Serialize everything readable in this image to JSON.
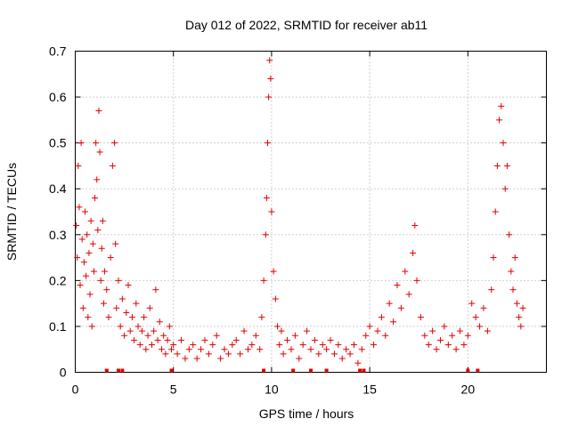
{
  "chart_data": {
    "type": "scatter",
    "title": "Day 012 of 2022, SRMTID for receiver ab11",
    "xlabel": "GPS time / hours",
    "ylabel": "SRMTID / TECUs",
    "xlim": [
      0,
      24
    ],
    "ylim": [
      0,
      0.7
    ],
    "xticks": [
      0,
      5,
      10,
      15,
      20
    ],
    "xtick_labels": [
      "0",
      "5",
      "10",
      "15",
      "20"
    ],
    "yticks": [
      0,
      0.1,
      0.2,
      0.3,
      0.4,
      0.5,
      0.6,
      0.7
    ],
    "ytick_labels": [
      "0",
      "0.1",
      "0.2",
      "0.3",
      "0.4",
      "0.5",
      "0.6",
      "0.7"
    ],
    "grid": true,
    "marker": "plus",
    "color": "#e00000",
    "series": [
      {
        "name": "SRMTID",
        "points": [
          [
            0.05,
            0.32
          ],
          [
            0.1,
            0.25
          ],
          [
            0.15,
            0.45
          ],
          [
            0.2,
            0.36
          ],
          [
            0.25,
            0.19
          ],
          [
            0.3,
            0.5
          ],
          [
            0.35,
            0.29
          ],
          [
            0.4,
            0.14
          ],
          [
            0.45,
            0.24
          ],
          [
            0.5,
            0.35
          ],
          [
            0.55,
            0.21
          ],
          [
            0.6,
            0.3
          ],
          [
            0.65,
            0.12
          ],
          [
            0.7,
            0.26
          ],
          [
            0.75,
            0.17
          ],
          [
            0.8,
            0.33
          ],
          [
            0.85,
            0.1
          ],
          [
            0.9,
            0.28
          ],
          [
            0.95,
            0.22
          ],
          [
            1.0,
            0.38
          ],
          [
            1.05,
            0.5
          ],
          [
            1.1,
            0.42
          ],
          [
            1.15,
            0.31
          ],
          [
            1.2,
            0.57
          ],
          [
            1.25,
            0.48
          ],
          [
            1.3,
            0.2
          ],
          [
            1.35,
            0.27
          ],
          [
            1.4,
            0.33
          ],
          [
            1.45,
            0.15
          ],
          [
            1.5,
            0.22
          ],
          [
            1.6,
            0.18
          ],
          [
            1.7,
            0.12
          ],
          [
            1.8,
            0.25
          ],
          [
            1.9,
            0.45
          ],
          [
            2.0,
            0.5
          ],
          [
            2.05,
            0.28
          ],
          [
            2.1,
            0.14
          ],
          [
            2.2,
            0.2
          ],
          [
            2.3,
            0.1
          ],
          [
            2.4,
            0.16
          ],
          [
            2.5,
            0.08
          ],
          [
            2.6,
            0.13
          ],
          [
            2.7,
            0.19
          ],
          [
            2.8,
            0.09
          ],
          [
            2.9,
            0.12
          ],
          [
            3.0,
            0.07
          ],
          [
            3.1,
            0.15
          ],
          [
            3.2,
            0.1
          ],
          [
            3.3,
            0.06
          ],
          [
            3.4,
            0.09
          ],
          [
            3.5,
            0.12
          ],
          [
            3.6,
            0.05
          ],
          [
            3.7,
            0.08
          ],
          [
            3.8,
            0.14
          ],
          [
            3.9,
            0.06
          ],
          [
            4.0,
            0.09
          ],
          [
            4.1,
            0.18
          ],
          [
            4.2,
            0.07
          ],
          [
            4.3,
            0.11
          ],
          [
            4.4,
            0.05
          ],
          [
            4.5,
            0.08
          ],
          [
            4.6,
            0.04
          ],
          [
            4.7,
            0.07
          ],
          [
            4.8,
            0.1
          ],
          [
            4.9,
            0.05
          ],
          [
            5.0,
            0.06
          ],
          [
            5.2,
            0.04
          ],
          [
            5.4,
            0.07
          ],
          [
            5.6,
            0.03
          ],
          [
            5.8,
            0.05
          ],
          [
            6.0,
            0.06
          ],
          [
            6.2,
            0.03
          ],
          [
            6.4,
            0.05
          ],
          [
            6.6,
            0.07
          ],
          [
            6.8,
            0.04
          ],
          [
            7.0,
            0.06
          ],
          [
            7.2,
            0.08
          ],
          [
            7.4,
            0.03
          ],
          [
            7.6,
            0.05
          ],
          [
            7.8,
            0.04
          ],
          [
            8.0,
            0.06
          ],
          [
            8.2,
            0.07
          ],
          [
            8.4,
            0.04
          ],
          [
            8.6,
            0.09
          ],
          [
            8.8,
            0.05
          ],
          [
            9.0,
            0.06
          ],
          [
            9.2,
            0.08
          ],
          [
            9.4,
            0.05
          ],
          [
            9.5,
            0.12
          ],
          [
            9.6,
            0.2
          ],
          [
            9.7,
            0.3
          ],
          [
            9.75,
            0.38
          ],
          [
            9.8,
            0.5
          ],
          [
            9.85,
            0.6
          ],
          [
            9.9,
            0.68
          ],
          [
            9.95,
            0.64
          ],
          [
            10.0,
            0.35
          ],
          [
            10.1,
            0.22
          ],
          [
            10.2,
            0.16
          ],
          [
            10.3,
            0.1
          ],
          [
            10.4,
            0.06
          ],
          [
            10.5,
            0.09
          ],
          [
            10.6,
            0.04
          ],
          [
            10.8,
            0.07
          ],
          [
            11.0,
            0.05
          ],
          [
            11.2,
            0.08
          ],
          [
            11.4,
            0.03
          ],
          [
            11.6,
            0.06
          ],
          [
            11.8,
            0.09
          ],
          [
            12.0,
            0.05
          ],
          [
            12.2,
            0.07
          ],
          [
            12.4,
            0.04
          ],
          [
            12.6,
            0.06
          ],
          [
            12.8,
            0.05
          ],
          [
            13.0,
            0.07
          ],
          [
            13.2,
            0.04
          ],
          [
            13.4,
            0.06
          ],
          [
            13.6,
            0.03
          ],
          [
            13.8,
            0.05
          ],
          [
            14.0,
            0.04
          ],
          [
            14.2,
            0.06
          ],
          [
            14.4,
            0.02
          ],
          [
            14.6,
            0.05
          ],
          [
            14.8,
            0.08
          ],
          [
            15.0,
            0.1
          ],
          [
            15.2,
            0.06
          ],
          [
            15.4,
            0.09
          ],
          [
            15.6,
            0.12
          ],
          [
            15.8,
            0.08
          ],
          [
            16.0,
            0.15
          ],
          [
            16.2,
            0.11
          ],
          [
            16.4,
            0.19
          ],
          [
            16.6,
            0.14
          ],
          [
            16.8,
            0.22
          ],
          [
            17.0,
            0.17
          ],
          [
            17.2,
            0.26
          ],
          [
            17.3,
            0.32
          ],
          [
            17.4,
            0.2
          ],
          [
            17.6,
            0.12
          ],
          [
            17.8,
            0.08
          ],
          [
            18.0,
            0.06
          ],
          [
            18.2,
            0.09
          ],
          [
            18.4,
            0.05
          ],
          [
            18.6,
            0.07
          ],
          [
            18.8,
            0.1
          ],
          [
            19.0,
            0.06
          ],
          [
            19.2,
            0.08
          ],
          [
            19.4,
            0.05
          ],
          [
            19.6,
            0.09
          ],
          [
            19.8,
            0.06
          ],
          [
            20.0,
            0.08
          ],
          [
            20.2,
            0.15
          ],
          [
            20.4,
            0.12
          ],
          [
            20.6,
            0.1
          ],
          [
            20.8,
            0.14
          ],
          [
            21.0,
            0.09
          ],
          [
            21.2,
            0.18
          ],
          [
            21.3,
            0.25
          ],
          [
            21.4,
            0.35
          ],
          [
            21.5,
            0.45
          ],
          [
            21.6,
            0.55
          ],
          [
            21.7,
            0.58
          ],
          [
            21.8,
            0.5
          ],
          [
            21.9,
            0.4
          ],
          [
            22.0,
            0.45
          ],
          [
            22.1,
            0.3
          ],
          [
            22.2,
            0.22
          ],
          [
            22.3,
            0.18
          ],
          [
            22.4,
            0.25
          ],
          [
            22.5,
            0.15
          ],
          [
            22.6,
            0.12
          ],
          [
            22.7,
            0.1
          ],
          [
            22.8,
            0.14
          ]
        ]
      }
    ],
    "zero_markers": [
      1.6,
      2.2,
      2.4,
      4.9,
      9.6,
      11.1,
      12.0,
      12.8,
      14.5,
      14.7,
      20.0,
      20.5
    ]
  }
}
